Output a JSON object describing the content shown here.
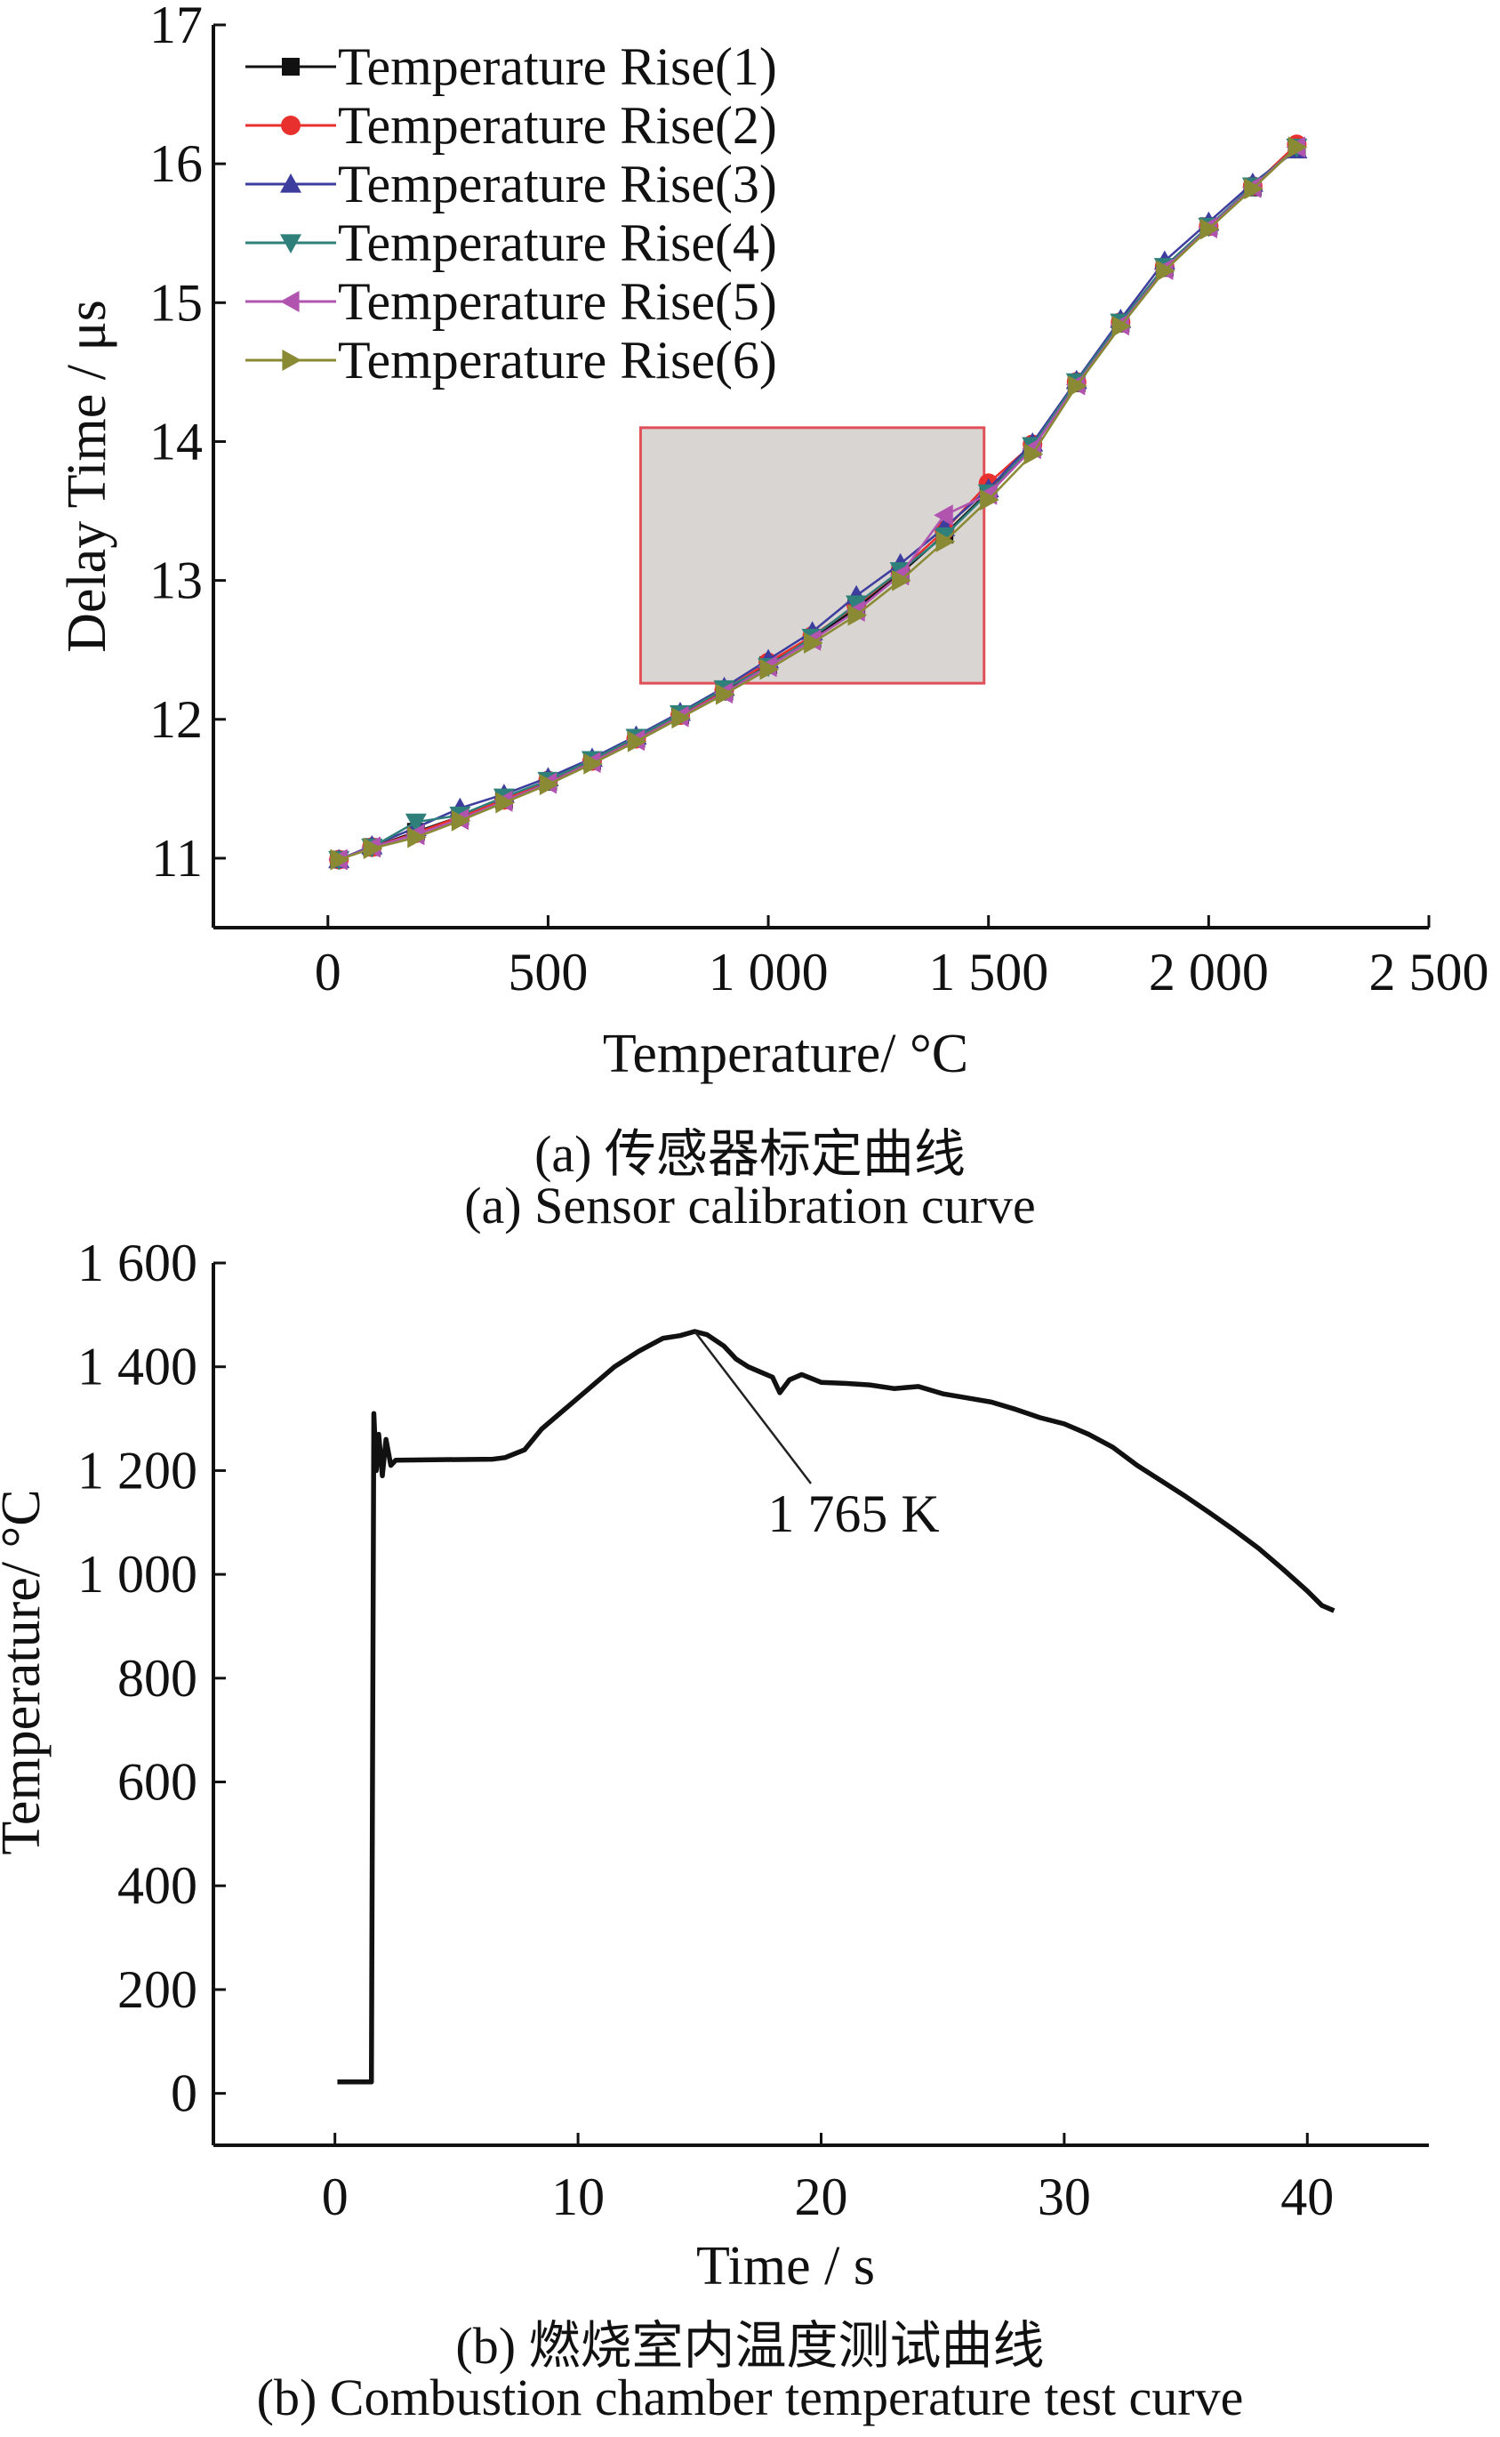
{
  "chart_data": [
    {
      "type": "line",
      "xlabel": "Temperature/ °C",
      "ylabel": "Delay Time / μs",
      "xlim": [
        -260,
        2500
      ],
      "ylim": [
        10.5,
        17
      ],
      "xticks": [
        0,
        500,
        1000,
        1500,
        2000,
        2500
      ],
      "xtick_labels": [
        "0",
        "500",
        "1 000",
        "1 500",
        "2 000",
        "2 500"
      ],
      "yticks": [
        11,
        12,
        13,
        14,
        15,
        16,
        17
      ],
      "ytick_labels": [
        "11",
        "12",
        "13",
        "14",
        "15",
        "16",
        "17"
      ],
      "grid": false,
      "legend_position": "top-left",
      "x": [
        25,
        100,
        200,
        300,
        400,
        500,
        600,
        700,
        800,
        900,
        1000,
        1100,
        1200,
        1300,
        1400,
        1500,
        1600,
        1700,
        1800,
        1900,
        2000,
        2100,
        2200
      ],
      "series": [
        {
          "name": "Temperature Rise(1)",
          "color": "#111111",
          "marker": "square",
          "values": [
            10.99,
            11.08,
            11.19,
            11.3,
            11.42,
            11.55,
            11.7,
            11.86,
            12.03,
            12.2,
            12.39,
            12.58,
            12.8,
            13.05,
            13.33,
            13.64,
            13.96,
            14.42,
            14.85,
            15.25,
            15.55,
            15.83,
            16.12
          ]
        },
        {
          "name": "Temperature Rise(2)",
          "color": "#e8302e",
          "marker": "circle",
          "values": [
            10.99,
            11.08,
            11.18,
            11.3,
            11.42,
            11.56,
            11.7,
            11.86,
            12.03,
            12.21,
            12.41,
            12.6,
            12.82,
            13.07,
            13.36,
            13.7,
            13.98,
            14.43,
            14.86,
            15.26,
            15.55,
            15.84,
            16.14
          ]
        },
        {
          "name": "Temperature Rise(3)",
          "color": "#3d3d9e",
          "marker": "triangle-up",
          "values": [
            10.99,
            11.09,
            11.22,
            11.36,
            11.46,
            11.58,
            11.72,
            11.88,
            12.05,
            12.23,
            12.43,
            12.63,
            12.89,
            13.12,
            13.38,
            13.66,
            13.99,
            14.44,
            14.88,
            15.3,
            15.58,
            15.86,
            16.1
          ]
        },
        {
          "name": "Temperature Rise(4)",
          "color": "#2f7f7a",
          "marker": "triangle-down",
          "values": [
            10.99,
            11.08,
            11.26,
            11.31,
            11.44,
            11.56,
            11.71,
            11.87,
            12.04,
            12.22,
            12.38,
            12.59,
            12.83,
            13.07,
            13.32,
            13.63,
            13.97,
            14.43,
            14.86,
            15.26,
            15.55,
            15.84,
            16.12
          ]
        },
        {
          "name": "Temperature Rise(5)",
          "color": "#b054b0",
          "marker": "triangle-left",
          "values": [
            10.99,
            11.08,
            11.17,
            11.28,
            11.41,
            11.54,
            11.69,
            11.85,
            12.02,
            12.19,
            12.38,
            12.57,
            12.78,
            13.04,
            13.47,
            13.62,
            13.95,
            14.41,
            14.84,
            15.24,
            15.54,
            15.83,
            16.12
          ]
        },
        {
          "name": "Temperature Rise(6)",
          "color": "#8a8a35",
          "marker": "triangle-right",
          "values": [
            10.99,
            11.07,
            11.15,
            11.27,
            11.4,
            11.53,
            11.68,
            11.84,
            12.01,
            12.18,
            12.36,
            12.55,
            12.75,
            13.0,
            13.28,
            13.58,
            13.91,
            14.4,
            14.83,
            15.23,
            15.53,
            15.82,
            16.12
          ]
        }
      ],
      "highlight_region": {
        "x": [
          710,
          1490
        ],
        "y": [
          12.26,
          14.1
        ],
        "fill": "#d9d5d3",
        "stroke": "#e05058"
      }
    },
    {
      "type": "line",
      "xlabel": "Time / s",
      "ylabel": "Temperature/ °C",
      "xlim": [
        -5,
        45
      ],
      "ylim": [
        -100,
        1600
      ],
      "xticks": [
        0,
        10,
        20,
        30,
        40
      ],
      "xtick_labels": [
        "0",
        "10",
        "20",
        "30",
        "40"
      ],
      "yticks": [
        0,
        200,
        400,
        600,
        800,
        1000,
        1200,
        1400,
        1600
      ],
      "ytick_labels": [
        "0",
        "200",
        "400",
        "600",
        "800",
        "1 000",
        "1 200",
        "1 400",
        "1 600"
      ],
      "grid": false,
      "series": [
        {
          "color": "#111111",
          "points": [
            [
              0.1,
              22
            ],
            [
              1.5,
              22
            ],
            [
              1.6,
              1310
            ],
            [
              1.7,
              1200
            ],
            [
              1.8,
              1270
            ],
            [
              1.95,
              1190
            ],
            [
              2.1,
              1260
            ],
            [
              2.3,
              1210
            ],
            [
              2.5,
              1220
            ],
            [
              6.5,
              1222
            ],
            [
              7.0,
              1225
            ],
            [
              7.8,
              1240
            ],
            [
              8.5,
              1280
            ],
            [
              9.5,
              1320
            ],
            [
              10.5,
              1360
            ],
            [
              11.5,
              1400
            ],
            [
              12.5,
              1430
            ],
            [
              13.5,
              1455
            ],
            [
              14.2,
              1460
            ],
            [
              14.8,
              1468
            ],
            [
              15.3,
              1462
            ],
            [
              16.0,
              1440
            ],
            [
              16.5,
              1415
            ],
            [
              17.0,
              1400
            ],
            [
              17.5,
              1390
            ],
            [
              18.0,
              1380
            ],
            [
              18.3,
              1350
            ],
            [
              18.7,
              1375
            ],
            [
              19.2,
              1385
            ],
            [
              20.0,
              1370
            ],
            [
              21.0,
              1368
            ],
            [
              22.0,
              1365
            ],
            [
              23.0,
              1358
            ],
            [
              24.0,
              1362
            ],
            [
              25.0,
              1348
            ],
            [
              26.0,
              1340
            ],
            [
              27.0,
              1332
            ],
            [
              28.0,
              1318
            ],
            [
              29.0,
              1302
            ],
            [
              30.0,
              1290
            ],
            [
              31.0,
              1270
            ],
            [
              32.0,
              1245
            ],
            [
              33.0,
              1210
            ],
            [
              34.0,
              1180
            ],
            [
              35.0,
              1150
            ],
            [
              36.0,
              1118
            ],
            [
              37.0,
              1085
            ],
            [
              38.0,
              1050
            ],
            [
              39.0,
              1010
            ],
            [
              40.0,
              968
            ],
            [
              40.6,
              940
            ],
            [
              41.1,
              930
            ]
          ]
        }
      ],
      "annotation": {
        "text": "1 765 K",
        "target": [
          14.8,
          1468
        ]
      }
    }
  ],
  "captions": {
    "a_cn": "(a) 传感器标定曲线",
    "a_en": "(a) Sensor calibration curve",
    "b_cn": "(b) 燃烧室内温度测试曲线",
    "b_en": "(b) Combustion chamber temperature test curve"
  }
}
